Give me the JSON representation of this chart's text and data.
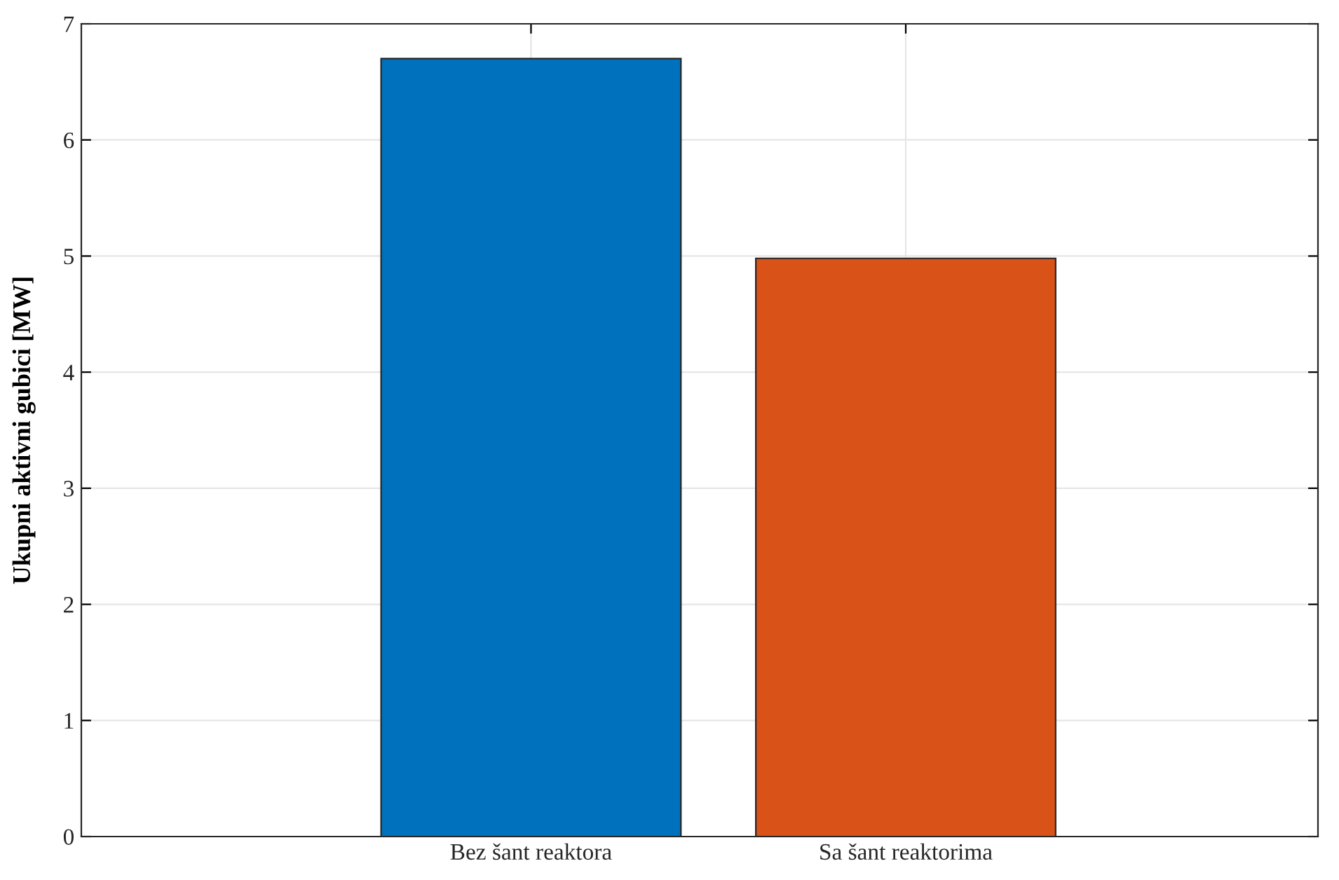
{
  "chart_data": {
    "type": "bar",
    "ylabel": "Ukupni aktivni gubici [MW]",
    "categories": [
      "Bez šant reaktora",
      "Sa šant reaktorima"
    ],
    "values": [
      6.7,
      4.98
    ],
    "colors": [
      "#0072bd",
      "#d95319"
    ],
    "ylim": [
      0,
      7
    ],
    "yticks": [
      0,
      1,
      2,
      3,
      4,
      5,
      6,
      7
    ],
    "grid": true
  }
}
